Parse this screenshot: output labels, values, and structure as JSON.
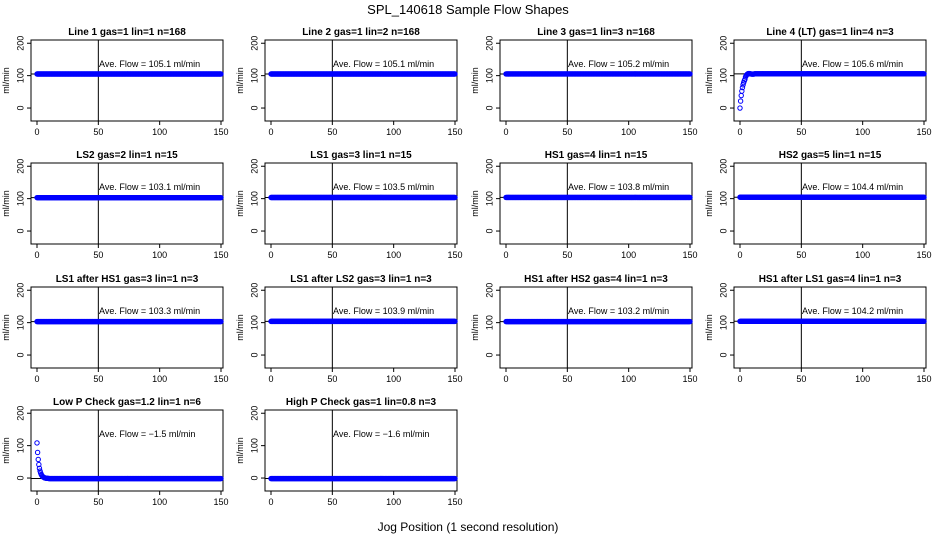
{
  "figure": {
    "title": "SPL_140618  Sample Flow Shapes",
    "xlabel": "Jog Position (1 second resolution)"
  },
  "chart_data": [
    {
      "type": "scatter",
      "title": "Line 1 gas=1 lin=1 n=168",
      "ylabel": "ml/min",
      "annotation": "Ave. Flow =  105.1  ml/min",
      "xlim": [
        0,
        150
      ],
      "ylim": [
        -40,
        210
      ],
      "xticks": [
        "0",
        "50",
        "100",
        "150"
      ],
      "yticks": [
        "0",
        "100",
        "200"
      ],
      "vline": 50,
      "hline": 105.1,
      "shape": "flat",
      "level": 105.1,
      "color": "#0000ff"
    },
    {
      "type": "scatter",
      "title": "Line 2 gas=1 lin=2 n=168",
      "ylabel": "ml/min",
      "annotation": "Ave. Flow =  105.1  ml/min",
      "xlim": [
        0,
        150
      ],
      "ylim": [
        -40,
        210
      ],
      "xticks": [
        "0",
        "50",
        "100",
        "150"
      ],
      "yticks": [
        "0",
        "100",
        "200"
      ],
      "vline": 50,
      "hline": 105.1,
      "shape": "flat",
      "level": 105.1,
      "color": "#0000ff"
    },
    {
      "type": "scatter",
      "title": "Line 3 gas=1 lin=3 n=168",
      "ylabel": "ml/min",
      "annotation": "Ave. Flow =  105.2  ml/min",
      "xlim": [
        0,
        150
      ],
      "ylim": [
        -40,
        210
      ],
      "xticks": [
        "0",
        "50",
        "100",
        "150"
      ],
      "yticks": [
        "0",
        "100",
        "200"
      ],
      "vline": 50,
      "hline": 105.2,
      "shape": "flat",
      "level": 105.2,
      "color": "#0000ff"
    },
    {
      "type": "scatter",
      "title": "Line 4 (LT) gas=1 lin=4 n=3",
      "ylabel": "ml/min",
      "annotation": "Ave. Flow =  105.6  ml/min",
      "xlim": [
        0,
        150
      ],
      "ylim": [
        -40,
        210
      ],
      "xticks": [
        "0",
        "50",
        "100",
        "150"
      ],
      "yticks": [
        "0",
        "100",
        "200"
      ],
      "vline": 50,
      "hline": 105.6,
      "shape": "rise",
      "level": 105.6,
      "color": "#0000ff"
    },
    {
      "type": "scatter",
      "title": "LS2 gas=2 lin=1 n=15",
      "ylabel": "ml/min",
      "annotation": "Ave. Flow =  103.1  ml/min",
      "xlim": [
        0,
        150
      ],
      "ylim": [
        -40,
        210
      ],
      "xticks": [
        "0",
        "50",
        "100",
        "150"
      ],
      "yticks": [
        "0",
        "100",
        "200"
      ],
      "vline": 50,
      "hline": 103.1,
      "shape": "flat",
      "level": 103.1,
      "color": "#0000ff"
    },
    {
      "type": "scatter",
      "title": "LS1 gas=3 lin=1 n=15",
      "ylabel": "ml/min",
      "annotation": "Ave. Flow =  103.5  ml/min",
      "xlim": [
        0,
        150
      ],
      "ylim": [
        -40,
        210
      ],
      "xticks": [
        "0",
        "50",
        "100",
        "150"
      ],
      "yticks": [
        "0",
        "100",
        "200"
      ],
      "vline": 50,
      "hline": 103.5,
      "shape": "flat",
      "level": 103.5,
      "color": "#0000ff"
    },
    {
      "type": "scatter",
      "title": "HS1 gas=4 lin=1 n=15",
      "ylabel": "ml/min",
      "annotation": "Ave. Flow =  103.8  ml/min",
      "xlim": [
        0,
        150
      ],
      "ylim": [
        -40,
        210
      ],
      "xticks": [
        "0",
        "50",
        "100",
        "150"
      ],
      "yticks": [
        "0",
        "100",
        "200"
      ],
      "vline": 50,
      "hline": 103.8,
      "shape": "flat",
      "level": 103.8,
      "color": "#0000ff"
    },
    {
      "type": "scatter",
      "title": "HS2 gas=5 lin=1 n=15",
      "ylabel": "ml/min",
      "annotation": "Ave. Flow =  104.4  ml/min",
      "xlim": [
        0,
        150
      ],
      "ylim": [
        -40,
        210
      ],
      "xticks": [
        "0",
        "50",
        "100",
        "150"
      ],
      "yticks": [
        "0",
        "100",
        "200"
      ],
      "vline": 50,
      "hline": 104.4,
      "shape": "flat",
      "level": 104.4,
      "color": "#0000ff"
    },
    {
      "type": "scatter",
      "title": "LS1 after HS1 gas=3 lin=1 n=3",
      "ylabel": "ml/min",
      "annotation": "Ave. Flow =  103.3  ml/min",
      "xlim": [
        0,
        150
      ],
      "ylim": [
        -40,
        210
      ],
      "xticks": [
        "0",
        "50",
        "100",
        "150"
      ],
      "yticks": [
        "0",
        "100",
        "200"
      ],
      "vline": 50,
      "hline": 103.3,
      "shape": "flat",
      "level": 103.3,
      "color": "#0000ff"
    },
    {
      "type": "scatter",
      "title": "LS1 after LS2 gas=3 lin=1 n=3",
      "ylabel": "ml/min",
      "annotation": "Ave. Flow =  103.9  ml/min",
      "xlim": [
        0,
        150
      ],
      "ylim": [
        -40,
        210
      ],
      "xticks": [
        "0",
        "50",
        "100",
        "150"
      ],
      "yticks": [
        "0",
        "100",
        "200"
      ],
      "vline": 50,
      "hline": 103.9,
      "shape": "flat",
      "level": 103.9,
      "color": "#0000ff"
    },
    {
      "type": "scatter",
      "title": "HS1 after HS2 gas=4 lin=1 n=3",
      "ylabel": "ml/min",
      "annotation": "Ave. Flow =  103.2  ml/min",
      "xlim": [
        0,
        150
      ],
      "ylim": [
        -40,
        210
      ],
      "xticks": [
        "0",
        "50",
        "100",
        "150"
      ],
      "yticks": [
        "0",
        "100",
        "200"
      ],
      "vline": 50,
      "hline": 103.2,
      "shape": "flat",
      "level": 103.2,
      "color": "#0000ff"
    },
    {
      "type": "scatter",
      "title": "HS1 after LS1 gas=4 lin=1 n=3",
      "ylabel": "ml/min",
      "annotation": "Ave. Flow =  104.2  ml/min",
      "xlim": [
        0,
        150
      ],
      "ylim": [
        -40,
        210
      ],
      "xticks": [
        "0",
        "50",
        "100",
        "150"
      ],
      "yticks": [
        "0",
        "100",
        "200"
      ],
      "vline": 50,
      "hline": 104.2,
      "shape": "flat",
      "level": 104.2,
      "color": "#0000ff"
    },
    {
      "type": "scatter",
      "title": "Low P Check gas=1.2 lin=1 n=6",
      "ylabel": "ml/min",
      "annotation": "Ave. Flow =  −1.5  ml/min",
      "xlim": [
        0,
        150
      ],
      "ylim": [
        -40,
        210
      ],
      "xticks": [
        "0",
        "50",
        "100",
        "150"
      ],
      "yticks": [
        "0",
        "100",
        "200"
      ],
      "vline": 50,
      "hline": -1.5,
      "shape": "decay",
      "level": -1.5,
      "color": "#0000ff"
    },
    {
      "type": "scatter",
      "title": "High P Check gas=1 lin=0.8 n=3",
      "ylabel": "ml/min",
      "annotation": "Ave. Flow =  −1.6  ml/min",
      "xlim": [
        0,
        150
      ],
      "ylim": [
        -40,
        210
      ],
      "xticks": [
        "0",
        "50",
        "100",
        "150"
      ],
      "yticks": [
        "0",
        "100",
        "200"
      ],
      "vline": 50,
      "hline": -1.6,
      "shape": "flat",
      "level": -1.6,
      "color": "#0000ff"
    }
  ]
}
